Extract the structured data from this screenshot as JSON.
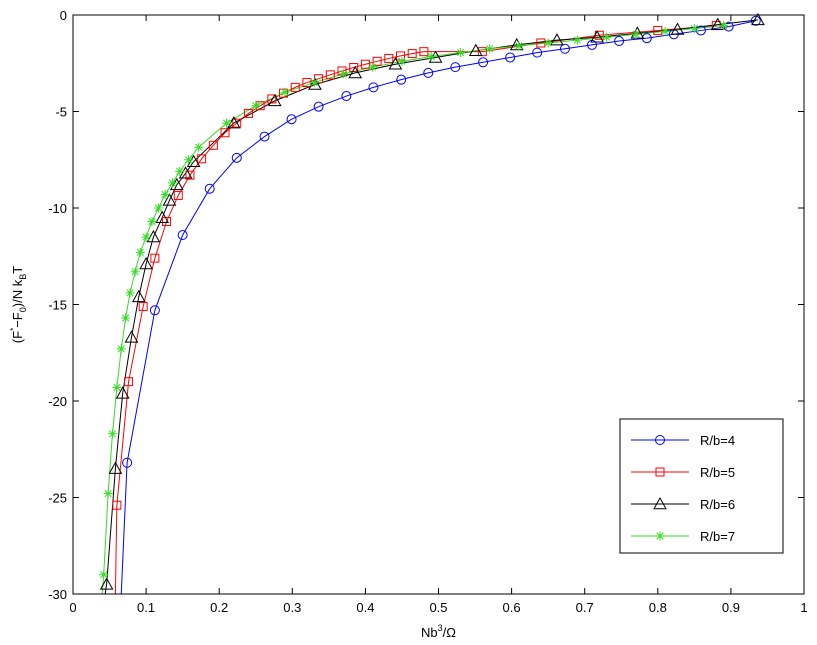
{
  "chart_data": {
    "type": "line",
    "xlabel": "Nb³/Ω",
    "ylabel": "(F*−F0)/N kBT",
    "xlim": [
      0,
      1
    ],
    "ylim": [
      -30,
      0
    ],
    "x_ticks": [
      "0",
      "0.1",
      "0.2",
      "0.3",
      "0.4",
      "0.5",
      "0.6",
      "0.7",
      "0.8",
      "0.9",
      "1"
    ],
    "y_ticks": [
      "0",
      "-5",
      "-10",
      "-15",
      "-20",
      "-25",
      "-30"
    ],
    "grid": false,
    "legend_position": "bottom-right",
    "series": [
      {
        "name": "R/b=4",
        "color": "#0000ff",
        "marker": "circle",
        "x": [
          0.074,
          0.112,
          0.15,
          0.187,
          0.224,
          0.262,
          0.299,
          0.336,
          0.374,
          0.411,
          0.449,
          0.486,
          0.523,
          0.561,
          0.598,
          0.635,
          0.673,
          0.71,
          0.747,
          0.785,
          0.822,
          0.859,
          0.897,
          0.934
        ],
        "y": [
          -23.2,
          -15.3,
          -11.4,
          -9.0,
          -7.4,
          -6.3,
          -5.4,
          -4.75,
          -4.2,
          -3.75,
          -3.35,
          -3.0,
          -2.7,
          -2.45,
          -2.2,
          -1.95,
          -1.75,
          -1.55,
          -1.35,
          -1.2,
          -1.0,
          -0.8,
          -0.6,
          -0.3
        ]
      },
      {
        "name": "R/b=5",
        "color": "#ff0000",
        "marker": "square",
        "x": [
          0.06,
          0.076,
          0.096,
          0.112,
          0.128,
          0.144,
          0.16,
          0.176,
          0.192,
          0.208,
          0.224,
          0.24,
          0.256,
          0.272,
          0.288,
          0.304,
          0.32,
          0.336,
          0.352,
          0.368,
          0.384,
          0.4,
          0.416,
          0.432,
          0.448,
          0.464,
          0.48,
          0.56,
          0.64,
          0.72,
          0.8,
          0.88
        ],
        "y": [
          -25.4,
          -19.0,
          -15.1,
          -12.6,
          -10.7,
          -9.35,
          -8.3,
          -7.45,
          -6.75,
          -6.1,
          -5.6,
          -5.1,
          -4.7,
          -4.35,
          -4.05,
          -3.75,
          -3.5,
          -3.3,
          -3.1,
          -2.9,
          -2.72,
          -2.55,
          -2.4,
          -2.25,
          -2.12,
          -2.0,
          -1.9,
          -1.9,
          -1.45,
          -1.05,
          -0.8,
          -0.55
        ]
      },
      {
        "name": "R/b=6",
        "color": "#000000",
        "marker": "triangle",
        "x": [
          0.046,
          0.058,
          0.068,
          0.08,
          0.09,
          0.1,
          0.11,
          0.122,
          0.132,
          0.142,
          0.154,
          0.165,
          0.22,
          0.276,
          0.331,
          0.386,
          0.441,
          0.496,
          0.551,
          0.607,
          0.662,
          0.717,
          0.772,
          0.827,
          0.882,
          0.937
        ],
        "y": [
          -29.5,
          -23.5,
          -19.6,
          -16.7,
          -14.6,
          -12.9,
          -11.5,
          -10.5,
          -9.6,
          -8.8,
          -8.2,
          -7.6,
          -5.6,
          -4.45,
          -3.6,
          -3.0,
          -2.55,
          -2.2,
          -1.85,
          -1.55,
          -1.3,
          -1.15,
          -0.95,
          -0.75,
          -0.5,
          -0.25
        ]
      },
      {
        "name": "R/b=7",
        "color": "#33dd22",
        "marker": "star",
        "x": [
          0.042,
          0.048,
          0.054,
          0.06,
          0.066,
          0.072,
          0.078,
          0.085,
          0.092,
          0.1,
          0.108,
          0.117,
          0.126,
          0.136,
          0.146,
          0.158,
          0.172,
          0.21,
          0.25,
          0.29,
          0.33,
          0.37,
          0.41,
          0.45,
          0.49,
          0.53,
          0.57,
          0.61,
          0.65,
          0.69,
          0.73,
          0.77,
          0.81,
          0.85,
          0.89
        ],
        "y": [
          -29.0,
          -24.8,
          -21.7,
          -19.3,
          -17.3,
          -15.7,
          -14.4,
          -13.3,
          -12.3,
          -11.5,
          -10.7,
          -10.0,
          -9.3,
          -8.7,
          -8.1,
          -7.5,
          -6.85,
          -5.6,
          -4.7,
          -4.0,
          -3.5,
          -3.05,
          -2.7,
          -2.4,
          -2.15,
          -1.95,
          -1.75,
          -1.6,
          -1.45,
          -1.3,
          -1.15,
          -1.0,
          -0.85,
          -0.7,
          -0.55
        ]
      }
    ]
  }
}
